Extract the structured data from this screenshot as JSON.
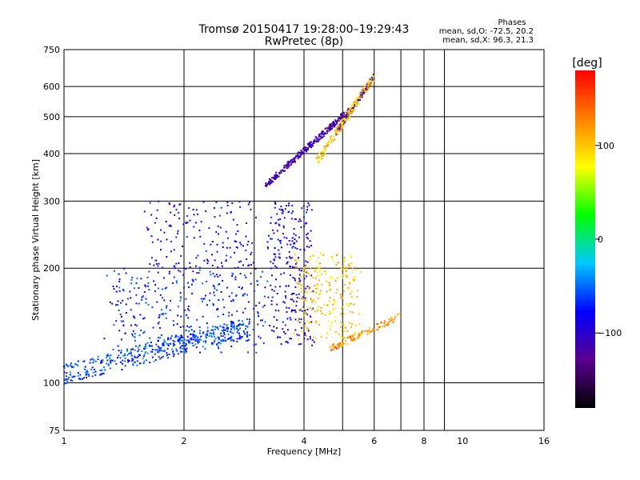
{
  "chart_data": {
    "type": "scatter",
    "title": "Tromsø 20150417 19:28:00–19:29:43",
    "subtitle": "RwPretec (8p)",
    "stats": {
      "heading": "Phases",
      "line_o": "mean, sd,O: -72.5, 20.2",
      "line_x": "mean, sd,X:  96.3, 21.3"
    },
    "xlabel": "Frequency [MHz]",
    "ylabel": "Stationary phase Virtual Height [km]",
    "x_scale": "log",
    "y_scale": "log",
    "xlim": [
      1,
      16
    ],
    "ylim": [
      75,
      750
    ],
    "x_ticks": [
      1,
      2,
      4,
      6,
      8,
      10,
      16
    ],
    "x_tick_labels": [
      "1",
      "2",
      "4",
      "6",
      "8",
      "10",
      "16"
    ],
    "x_grid": [
      2,
      3,
      4,
      5,
      6,
      7,
      8,
      9
    ],
    "y_ticks": [
      75,
      100,
      200,
      300,
      400,
      500,
      600,
      750
    ],
    "y_tick_labels": [
      "75",
      "100",
      "200",
      "300",
      "400",
      "500",
      "600",
      "750"
    ],
    "y_grid": [
      100,
      200,
      300,
      400,
      500,
      600
    ],
    "grid": true,
    "colorbar": {
      "label": "[deg]",
      "min": -180,
      "max": 180,
      "ticks": [
        100,
        0,
        -100
      ],
      "tick_labels": [
        "100",
        "0",
        "−100"
      ],
      "colors": [
        "#000000",
        "#5a0090",
        "#0000ff",
        "#00c8ff",
        "#00ff00",
        "#ffff00",
        "#ff8000",
        "#ff0000"
      ]
    },
    "clusters": [
      {
        "name": "O trace lower E/F1",
        "phase": -60,
        "x": [
          1.0,
          2.9
        ],
        "y": [
          105,
          140
        ],
        "count": 420,
        "spread": 0.06,
        "shape": "rising"
      },
      {
        "name": "O trace F1 diffuse",
        "phase": -70,
        "x": [
          1.3,
          3.2
        ],
        "y": [
          120,
          200
        ],
        "count": 350,
        "spread": 0.08,
        "shape": "cloud"
      },
      {
        "name": "O spread F low",
        "phase": -85,
        "x": [
          1.6,
          3.0
        ],
        "y": [
          200,
          300
        ],
        "count": 160,
        "spread": 0.06,
        "shape": "cloud"
      },
      {
        "name": "O trace F2 cusp",
        "phase": -90,
        "x": [
          3.3,
          4.2
        ],
        "y": [
          125,
          300
        ],
        "count": 260,
        "spread": 0.04,
        "shape": "cloud"
      },
      {
        "name": "O trace F2 upper",
        "phase": -115,
        "x": [
          3.2,
          5.2
        ],
        "y": [
          330,
          520
        ],
        "count": 280,
        "spread": 0.02,
        "shape": "rising"
      },
      {
        "name": "O trace F2 top",
        "phase": -110,
        "x": [
          4.8,
          6.0
        ],
        "y": [
          450,
          640
        ],
        "count": 120,
        "spread": 0.02,
        "shape": "rising"
      },
      {
        "name": "X trace F1",
        "phase": 100,
        "x": [
          3.8,
          5.5
        ],
        "y": [
          130,
          220
        ],
        "count": 240,
        "spread": 0.05,
        "shape": "cloud"
      },
      {
        "name": "X trace lower",
        "phase": 120,
        "x": [
          4.6,
          7.0
        ],
        "y": [
          122,
          150
        ],
        "count": 120,
        "spread": 0.02,
        "shape": "rising"
      },
      {
        "name": "X trace F2 upper",
        "phase": 100,
        "x": [
          4.3,
          6.0
        ],
        "y": [
          380,
          640
        ],
        "count": 160,
        "spread": 0.03,
        "shape": "rising"
      }
    ]
  }
}
